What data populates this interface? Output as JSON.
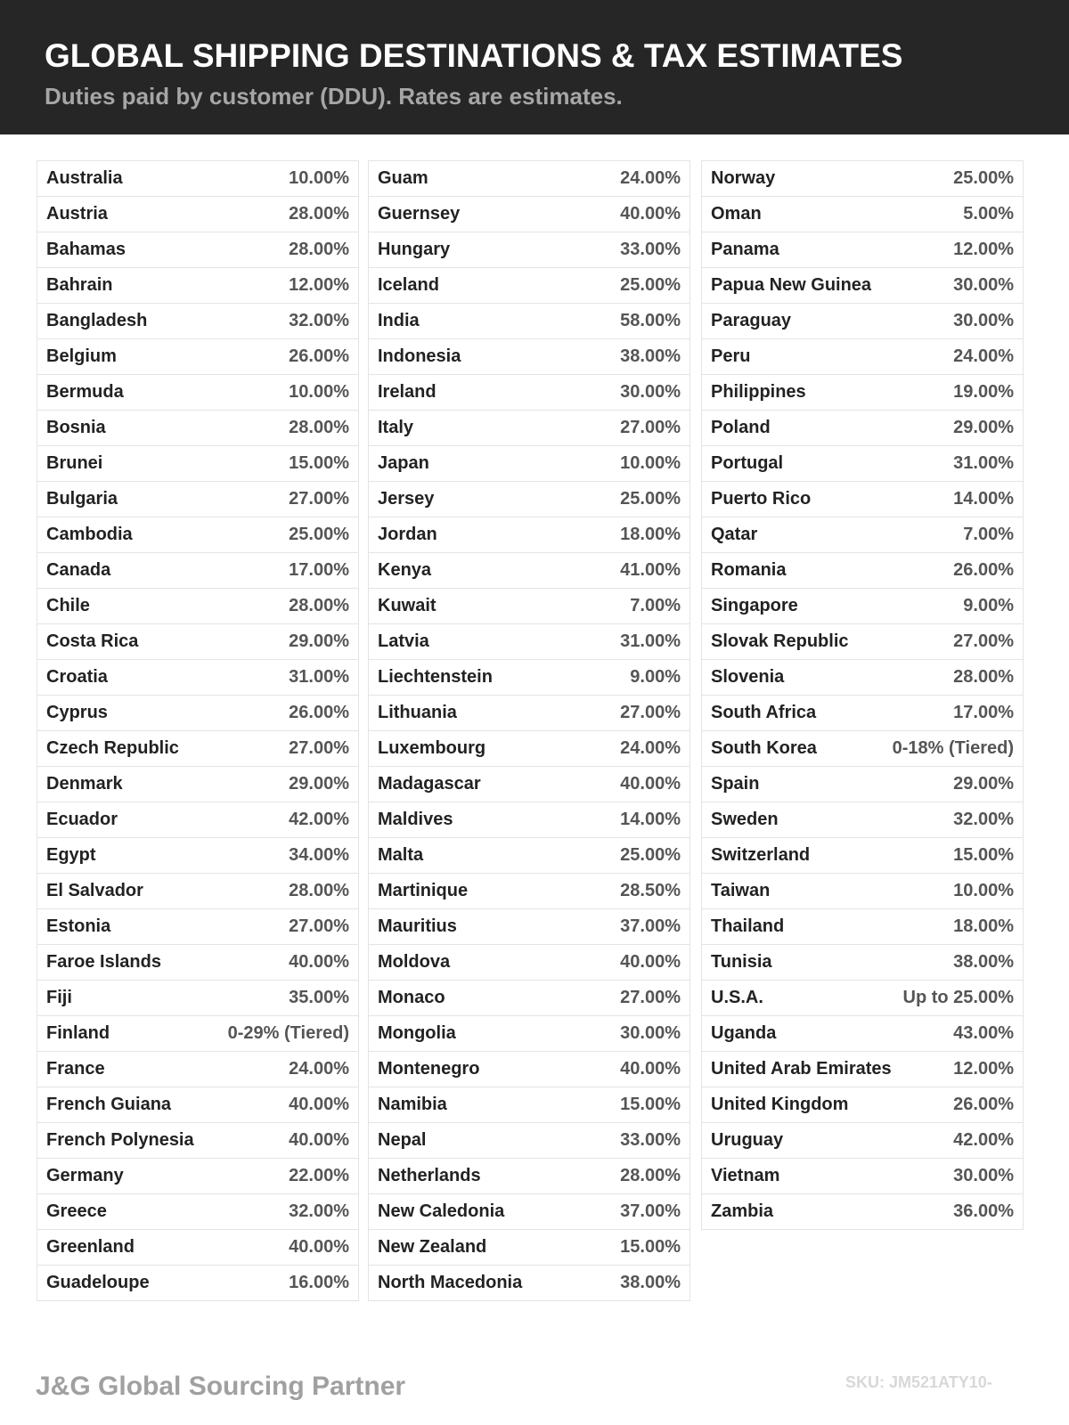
{
  "header": {
    "title": "GLOBAL SHIPPING DESTINATIONS & TAX ESTIMATES",
    "subtitle": "Duties paid by customer (DDU). Rates are estimates."
  },
  "columns": [
    {
      "rows": [
        [
          "Australia",
          "10.00%"
        ],
        [
          "Austria",
          "28.00%"
        ],
        [
          "Bahamas",
          "28.00%"
        ],
        [
          "Bahrain",
          "12.00%"
        ],
        [
          "Bangladesh",
          "32.00%"
        ],
        [
          "Belgium",
          "26.00%"
        ],
        [
          "Bermuda",
          "10.00%"
        ],
        [
          "Bosnia",
          "28.00%"
        ],
        [
          "Brunei",
          "15.00%"
        ],
        [
          "Bulgaria",
          "27.00%"
        ],
        [
          "Cambodia",
          "25.00%"
        ],
        [
          "Canada",
          "17.00%"
        ],
        [
          "Chile",
          "28.00%"
        ],
        [
          "Costa Rica",
          "29.00%"
        ],
        [
          "Croatia",
          "31.00%"
        ],
        [
          "Cyprus",
          "26.00%"
        ],
        [
          "Czech Republic",
          "27.00%"
        ],
        [
          "Denmark",
          "29.00%"
        ],
        [
          "Ecuador",
          "42.00%"
        ],
        [
          "Egypt",
          "34.00%"
        ],
        [
          "El Salvador",
          "28.00%"
        ],
        [
          "Estonia",
          "27.00%"
        ],
        [
          "Faroe Islands",
          "40.00%"
        ],
        [
          "Fiji",
          "35.00%"
        ],
        [
          "Finland",
          "0-29% (Tiered)"
        ],
        [
          "France",
          "24.00%"
        ],
        [
          "French Guiana",
          "40.00%"
        ],
        [
          "French Polynesia",
          "40.00%"
        ],
        [
          "Germany",
          "22.00%"
        ],
        [
          "Greece",
          "32.00%"
        ],
        [
          "Greenland",
          "40.00%"
        ],
        [
          "Guadeloupe",
          "16.00%"
        ]
      ]
    },
    {
      "rows": [
        [
          "Guam",
          "24.00%"
        ],
        [
          "Guernsey",
          "40.00%"
        ],
        [
          "Hungary",
          "33.00%"
        ],
        [
          "Iceland",
          "25.00%"
        ],
        [
          "India",
          "58.00%"
        ],
        [
          "Indonesia",
          "38.00%"
        ],
        [
          "Ireland",
          "30.00%"
        ],
        [
          "Italy",
          "27.00%"
        ],
        [
          "Japan",
          "10.00%"
        ],
        [
          "Jersey",
          "25.00%"
        ],
        [
          "Jordan",
          "18.00%"
        ],
        [
          "Kenya",
          "41.00%"
        ],
        [
          "Kuwait",
          "7.00%"
        ],
        [
          "Latvia",
          "31.00%"
        ],
        [
          "Liechtenstein",
          "9.00%"
        ],
        [
          "Lithuania",
          "27.00%"
        ],
        [
          "Luxembourg",
          "24.00%"
        ],
        [
          "Madagascar",
          "40.00%"
        ],
        [
          "Maldives",
          "14.00%"
        ],
        [
          "Malta",
          "25.00%"
        ],
        [
          "Martinique",
          "28.50%"
        ],
        [
          "Mauritius",
          "37.00%"
        ],
        [
          "Moldova",
          "40.00%"
        ],
        [
          "Monaco",
          "27.00%"
        ],
        [
          "Mongolia",
          "30.00%"
        ],
        [
          "Montenegro",
          "40.00%"
        ],
        [
          "Namibia",
          "15.00%"
        ],
        [
          "Nepal",
          "33.00%"
        ],
        [
          "Netherlands",
          "28.00%"
        ],
        [
          "New Caledonia",
          "37.00%"
        ],
        [
          "New Zealand",
          "15.00%"
        ],
        [
          "North Macedonia",
          "38.00%"
        ]
      ]
    },
    {
      "rows": [
        [
          "Norway",
          "25.00%"
        ],
        [
          "Oman",
          "5.00%"
        ],
        [
          "Panama",
          "12.00%"
        ],
        [
          "Papua New Guinea",
          "30.00%"
        ],
        [
          "Paraguay",
          "30.00%"
        ],
        [
          "Peru",
          "24.00%"
        ],
        [
          "Philippines",
          "19.00%"
        ],
        [
          "Poland",
          "29.00%"
        ],
        [
          "Portugal",
          "31.00%"
        ],
        [
          "Puerto Rico",
          "14.00%"
        ],
        [
          "Qatar",
          "7.00%"
        ],
        [
          "Romania",
          "26.00%"
        ],
        [
          "Singapore",
          "9.00%"
        ],
        [
          "Slovak Republic",
          "27.00%"
        ],
        [
          "Slovenia",
          "28.00%"
        ],
        [
          "South Africa",
          "17.00%"
        ],
        [
          "South Korea",
          "0-18% (Tiered)"
        ],
        [
          "Spain",
          "29.00%"
        ],
        [
          "Sweden",
          "32.00%"
        ],
        [
          "Switzerland",
          "15.00%"
        ],
        [
          "Taiwan",
          "10.00%"
        ],
        [
          "Thailand",
          "18.00%"
        ],
        [
          "Tunisia",
          "38.00%"
        ],
        [
          "U.S.A.",
          "Up to 25.00%"
        ],
        [
          "Uganda",
          "43.00%"
        ],
        [
          "United Arab Emirates",
          "12.00%"
        ],
        [
          "United Kingdom",
          "26.00%"
        ],
        [
          "Uruguay",
          "42.00%"
        ],
        [
          "Vietnam",
          "30.00%"
        ],
        [
          "Zambia",
          "36.00%"
        ]
      ]
    }
  ],
  "footer": {
    "brand": "J&G Global Sourcing Partner",
    "sku": "SKU: JM521ATY10-"
  }
}
